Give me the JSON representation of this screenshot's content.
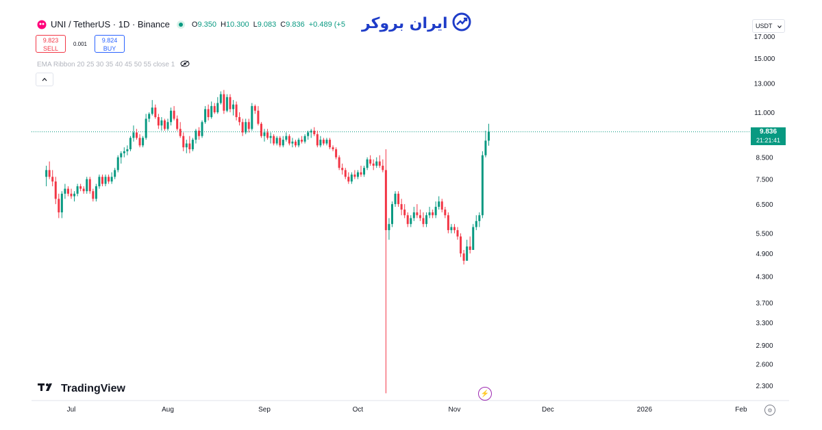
{
  "header": {
    "symbol_title": "UNI / TetherUS · 1D · Binance",
    "ohlc": [
      {
        "k": "O",
        "v": "9.350"
      },
      {
        "k": "H",
        "v": "10.300"
      },
      {
        "k": "L",
        "v": "9.083"
      },
      {
        "k": "C",
        "v": "9.836"
      },
      {
        "k": "",
        "v": "+0.489 (+5"
      }
    ]
  },
  "trade": {
    "sell_price": "9.823",
    "sell_label": "SELL",
    "spread": "0.001",
    "buy_price": "9.824",
    "buy_label": "BUY"
  },
  "indicator": {
    "label": "EMA Ribbon 20 25 30 35 40 45 50 55 close 1"
  },
  "currency": {
    "label": "USDT"
  },
  "price_tag": {
    "price": "9.836",
    "countdown": "21:21:41"
  },
  "logo": {
    "text": "TradingView"
  },
  "brand": {
    "text": "ایران بروکر"
  },
  "colors": {
    "up": "#089981",
    "down": "#f23645",
    "axis_text": "#131722",
    "brand": "#1e3cc8"
  },
  "chart_data": {
    "type": "candlestick",
    "symbol": "UNI/USDT",
    "interval": "1D",
    "x_ticks": [
      "Jul",
      "Aug",
      "Sep",
      "Oct",
      "Nov",
      "Dec",
      "2026",
      "Feb"
    ],
    "y_ticks": [
      17.0,
      15.0,
      13.0,
      11.0,
      8.5,
      7.5,
      6.5,
      5.5,
      4.9,
      4.3,
      3.7,
      3.3,
      2.9,
      2.6,
      2.3
    ],
    "y_tick_labels": [
      "17.000",
      "15.000",
      "13.000",
      "11.000",
      "8.500",
      "7.500",
      "6.500",
      "5.500",
      "4.900",
      "4.300",
      "3.700",
      "3.300",
      "2.900",
      "2.600",
      "2.300"
    ],
    "y_scale": "log",
    "last_price": 9.836,
    "candles": [
      {
        "d": "2025-06-23",
        "o": 7.6,
        "h": 8.1,
        "l": 7.2,
        "c": 7.9
      },
      {
        "d": "2025-06-24",
        "o": 7.9,
        "h": 8.3,
        "l": 7.5,
        "c": 7.6
      },
      {
        "d": "2025-06-25",
        "o": 7.6,
        "h": 7.9,
        "l": 7.2,
        "c": 7.4
      },
      {
        "d": "2025-06-26",
        "o": 7.4,
        "h": 7.6,
        "l": 6.5,
        "c": 6.7
      },
      {
        "d": "2025-06-27",
        "o": 6.7,
        "h": 6.9,
        "l": 6.0,
        "c": 6.2
      },
      {
        "d": "2025-06-28",
        "o": 6.2,
        "h": 7.0,
        "l": 6.0,
        "c": 6.9
      },
      {
        "d": "2025-06-29",
        "o": 6.9,
        "h": 7.3,
        "l": 6.7,
        "c": 7.1
      },
      {
        "d": "2025-06-30",
        "o": 7.1,
        "h": 7.2,
        "l": 6.8,
        "c": 6.9
      },
      {
        "d": "2025-07-01",
        "o": 6.9,
        "h": 7.1,
        "l": 6.7,
        "c": 6.8
      },
      {
        "d": "2025-07-02",
        "o": 6.8,
        "h": 7.0,
        "l": 6.6,
        "c": 6.9
      },
      {
        "d": "2025-07-03",
        "o": 6.9,
        "h": 7.3,
        "l": 6.8,
        "c": 7.2
      },
      {
        "d": "2025-07-04",
        "o": 7.2,
        "h": 7.3,
        "l": 7.0,
        "c": 7.1
      },
      {
        "d": "2025-07-05",
        "o": 7.1,
        "h": 7.2,
        "l": 6.9,
        "c": 7.0
      },
      {
        "d": "2025-07-06",
        "o": 7.0,
        "h": 7.6,
        "l": 6.9,
        "c": 7.5
      },
      {
        "d": "2025-07-07",
        "o": 7.5,
        "h": 7.6,
        "l": 6.9,
        "c": 7.0
      },
      {
        "d": "2025-07-08",
        "o": 7.0,
        "h": 7.1,
        "l": 6.6,
        "c": 6.7
      },
      {
        "d": "2025-07-09",
        "o": 6.7,
        "h": 7.3,
        "l": 6.6,
        "c": 7.2
      },
      {
        "d": "2025-07-10",
        "o": 7.2,
        "h": 7.7,
        "l": 7.1,
        "c": 7.6
      },
      {
        "d": "2025-07-11",
        "o": 7.6,
        "h": 7.7,
        "l": 7.2,
        "c": 7.3
      },
      {
        "d": "2025-07-12",
        "o": 7.3,
        "h": 7.7,
        "l": 7.2,
        "c": 7.6
      },
      {
        "d": "2025-07-13",
        "o": 7.6,
        "h": 7.7,
        "l": 7.3,
        "c": 7.4
      },
      {
        "d": "2025-07-14",
        "o": 7.4,
        "h": 7.8,
        "l": 7.3,
        "c": 7.6
      },
      {
        "d": "2025-07-15",
        "o": 7.6,
        "h": 8.0,
        "l": 7.5,
        "c": 7.9
      },
      {
        "d": "2025-07-16",
        "o": 7.9,
        "h": 8.6,
        "l": 7.8,
        "c": 8.5
      },
      {
        "d": "2025-07-17",
        "o": 8.5,
        "h": 8.8,
        "l": 8.2,
        "c": 8.7
      },
      {
        "d": "2025-07-18",
        "o": 8.7,
        "h": 9.0,
        "l": 8.5,
        "c": 8.8
      },
      {
        "d": "2025-07-19",
        "o": 8.8,
        "h": 9.1,
        "l": 8.6,
        "c": 8.9
      },
      {
        "d": "2025-07-20",
        "o": 8.9,
        "h": 9.6,
        "l": 8.8,
        "c": 9.5
      },
      {
        "d": "2025-07-21",
        "o": 9.5,
        "h": 10.2,
        "l": 9.3,
        "c": 9.8
      },
      {
        "d": "2025-07-22",
        "o": 9.8,
        "h": 10.0,
        "l": 9.4,
        "c": 9.5
      },
      {
        "d": "2025-07-23",
        "o": 9.5,
        "h": 9.7,
        "l": 9.0,
        "c": 9.1
      },
      {
        "d": "2025-07-24",
        "o": 9.1,
        "h": 9.6,
        "l": 9.0,
        "c": 9.5
      },
      {
        "d": "2025-07-25",
        "o": 9.5,
        "h": 10.9,
        "l": 9.4,
        "c": 10.6
      },
      {
        "d": "2025-07-26",
        "o": 10.6,
        "h": 11.0,
        "l": 10.4,
        "c": 10.9
      },
      {
        "d": "2025-07-27",
        "o": 10.9,
        "h": 11.8,
        "l": 10.8,
        "c": 11.3
      },
      {
        "d": "2025-07-28",
        "o": 11.3,
        "h": 11.5,
        "l": 10.6,
        "c": 10.7
      },
      {
        "d": "2025-07-29",
        "o": 10.7,
        "h": 10.9,
        "l": 10.0,
        "c": 10.2
      },
      {
        "d": "2025-07-30",
        "o": 10.2,
        "h": 10.7,
        "l": 9.9,
        "c": 10.5
      },
      {
        "d": "2025-07-31",
        "o": 10.5,
        "h": 10.6,
        "l": 9.9,
        "c": 10.0
      },
      {
        "d": "2025-08-01",
        "o": 10.0,
        "h": 10.6,
        "l": 9.9,
        "c": 10.4
      },
      {
        "d": "2025-08-02",
        "o": 10.4,
        "h": 11.3,
        "l": 10.2,
        "c": 11.1
      },
      {
        "d": "2025-08-03",
        "o": 11.1,
        "h": 11.4,
        "l": 10.5,
        "c": 10.6
      },
      {
        "d": "2025-08-04",
        "o": 10.6,
        "h": 10.8,
        "l": 9.9,
        "c": 10.0
      },
      {
        "d": "2025-08-05",
        "o": 10.0,
        "h": 10.4,
        "l": 9.5,
        "c": 9.6
      },
      {
        "d": "2025-08-06",
        "o": 9.6,
        "h": 9.8,
        "l": 8.8,
        "c": 9.0
      },
      {
        "d": "2025-08-07",
        "o": 9.0,
        "h": 9.4,
        "l": 8.7,
        "c": 9.2
      },
      {
        "d": "2025-08-08",
        "o": 9.2,
        "h": 9.6,
        "l": 8.7,
        "c": 8.9
      },
      {
        "d": "2025-08-09",
        "o": 8.9,
        "h": 9.5,
        "l": 8.8,
        "c": 9.4
      },
      {
        "d": "2025-08-10",
        "o": 9.4,
        "h": 10.0,
        "l": 9.2,
        "c": 9.9
      },
      {
        "d": "2025-08-11",
        "o": 9.9,
        "h": 10.1,
        "l": 9.4,
        "c": 9.6
      },
      {
        "d": "2025-08-12",
        "o": 9.6,
        "h": 10.5,
        "l": 9.5,
        "c": 10.4
      },
      {
        "d": "2025-08-13",
        "o": 10.4,
        "h": 11.4,
        "l": 10.3,
        "c": 11.2
      },
      {
        "d": "2025-08-14",
        "o": 11.2,
        "h": 11.5,
        "l": 10.5,
        "c": 10.7
      },
      {
        "d": "2025-08-15",
        "o": 10.7,
        "h": 11.7,
        "l": 10.6,
        "c": 11.4
      },
      {
        "d": "2025-08-16",
        "o": 11.4,
        "h": 11.6,
        "l": 10.9,
        "c": 11.0
      },
      {
        "d": "2025-08-17",
        "o": 11.0,
        "h": 12.0,
        "l": 10.9,
        "c": 11.6
      },
      {
        "d": "2025-08-18",
        "o": 11.6,
        "h": 12.4,
        "l": 11.5,
        "c": 12.2
      },
      {
        "d": "2025-08-19",
        "o": 12.2,
        "h": 12.5,
        "l": 10.9,
        "c": 11.1
      },
      {
        "d": "2025-08-20",
        "o": 11.1,
        "h": 12.2,
        "l": 11.0,
        "c": 12.0
      },
      {
        "d": "2025-08-21",
        "o": 12.0,
        "h": 12.2,
        "l": 11.0,
        "c": 11.2
      },
      {
        "d": "2025-08-22",
        "o": 11.2,
        "h": 11.8,
        "l": 10.8,
        "c": 11.5
      },
      {
        "d": "2025-08-23",
        "o": 11.5,
        "h": 11.7,
        "l": 10.5,
        "c": 10.7
      },
      {
        "d": "2025-08-24",
        "o": 10.7,
        "h": 11.0,
        "l": 10.2,
        "c": 10.4
      },
      {
        "d": "2025-08-25",
        "o": 10.4,
        "h": 10.6,
        "l": 9.6,
        "c": 9.8
      },
      {
        "d": "2025-08-26",
        "o": 9.8,
        "h": 10.6,
        "l": 9.7,
        "c": 10.4
      },
      {
        "d": "2025-08-27",
        "o": 10.4,
        "h": 10.6,
        "l": 9.8,
        "c": 10.0
      },
      {
        "d": "2025-08-28",
        "o": 10.0,
        "h": 11.6,
        "l": 9.9,
        "c": 11.4
      },
      {
        "d": "2025-08-29",
        "o": 11.4,
        "h": 11.5,
        "l": 10.9,
        "c": 11.1
      },
      {
        "d": "2025-08-30",
        "o": 11.1,
        "h": 11.4,
        "l": 10.2,
        "c": 10.3
      },
      {
        "d": "2025-08-31",
        "o": 10.3,
        "h": 10.4,
        "l": 9.5,
        "c": 9.6
      },
      {
        "d": "2025-09-01",
        "o": 9.6,
        "h": 10.0,
        "l": 9.3,
        "c": 9.8
      },
      {
        "d": "2025-09-02",
        "o": 9.8,
        "h": 10.0,
        "l": 9.4,
        "c": 9.5
      },
      {
        "d": "2025-09-03",
        "o": 9.5,
        "h": 9.8,
        "l": 9.2,
        "c": 9.6
      },
      {
        "d": "2025-09-04",
        "o": 9.6,
        "h": 9.7,
        "l": 9.1,
        "c": 9.2
      },
      {
        "d": "2025-09-05",
        "o": 9.2,
        "h": 9.6,
        "l": 9.1,
        "c": 9.5
      },
      {
        "d": "2025-09-06",
        "o": 9.5,
        "h": 9.6,
        "l": 9.0,
        "c": 9.1
      },
      {
        "d": "2025-09-07",
        "o": 9.1,
        "h": 9.6,
        "l": 9.0,
        "c": 9.4
      },
      {
        "d": "2025-09-08",
        "o": 9.4,
        "h": 9.8,
        "l": 9.3,
        "c": 9.6
      },
      {
        "d": "2025-09-09",
        "o": 9.6,
        "h": 9.7,
        "l": 9.1,
        "c": 9.2
      },
      {
        "d": "2025-09-10",
        "o": 9.2,
        "h": 9.5,
        "l": 9.0,
        "c": 9.3
      },
      {
        "d": "2025-09-11",
        "o": 9.3,
        "h": 9.4,
        "l": 9.0,
        "c": 9.1
      },
      {
        "d": "2025-09-12",
        "o": 9.1,
        "h": 9.5,
        "l": 9.0,
        "c": 9.4
      },
      {
        "d": "2025-09-13",
        "o": 9.4,
        "h": 9.6,
        "l": 9.2,
        "c": 9.3
      },
      {
        "d": "2025-09-14",
        "o": 9.3,
        "h": 9.7,
        "l": 9.2,
        "c": 9.6
      },
      {
        "d": "2025-09-15",
        "o": 9.6,
        "h": 9.9,
        "l": 9.4,
        "c": 9.8
      },
      {
        "d": "2025-09-16",
        "o": 9.8,
        "h": 10.0,
        "l": 9.5,
        "c": 9.9
      },
      {
        "d": "2025-09-17",
        "o": 9.9,
        "h": 10.1,
        "l": 9.6,
        "c": 9.7
      },
      {
        "d": "2025-09-18",
        "o": 9.7,
        "h": 9.9,
        "l": 9.0,
        "c": 9.1
      },
      {
        "d": "2025-09-19",
        "o": 9.1,
        "h": 9.6,
        "l": 9.0,
        "c": 9.4
      },
      {
        "d": "2025-09-20",
        "o": 9.4,
        "h": 9.5,
        "l": 9.1,
        "c": 9.2
      },
      {
        "d": "2025-09-21",
        "o": 9.2,
        "h": 9.5,
        "l": 9.1,
        "c": 9.4
      },
      {
        "d": "2025-09-22",
        "o": 9.4,
        "h": 9.5,
        "l": 8.9,
        "c": 9.0
      },
      {
        "d": "2025-09-23",
        "o": 9.0,
        "h": 9.1,
        "l": 8.8,
        "c": 8.9
      },
      {
        "d": "2025-09-24",
        "o": 8.9,
        "h": 9.0,
        "l": 8.4,
        "c": 8.5
      },
      {
        "d": "2025-09-25",
        "o": 8.5,
        "h": 8.6,
        "l": 7.9,
        "c": 8.0
      },
      {
        "d": "2025-09-26",
        "o": 8.0,
        "h": 8.2,
        "l": 7.7,
        "c": 7.9
      },
      {
        "d": "2025-09-27",
        "o": 7.9,
        "h": 8.0,
        "l": 7.5,
        "c": 7.6
      },
      {
        "d": "2025-09-28",
        "o": 7.6,
        "h": 7.8,
        "l": 7.3,
        "c": 7.4
      },
      {
        "d": "2025-09-29",
        "o": 7.4,
        "h": 7.8,
        "l": 7.3,
        "c": 7.7
      },
      {
        "d": "2025-09-30",
        "o": 7.7,
        "h": 7.9,
        "l": 7.5,
        "c": 7.6
      },
      {
        "d": "2025-10-01",
        "o": 7.6,
        "h": 7.9,
        "l": 7.5,
        "c": 7.8
      },
      {
        "d": "2025-10-02",
        "o": 7.8,
        "h": 8.1,
        "l": 7.6,
        "c": 7.7
      },
      {
        "d": "2025-10-03",
        "o": 7.7,
        "h": 8.1,
        "l": 7.6,
        "c": 8.0
      },
      {
        "d": "2025-10-04",
        "o": 8.0,
        "h": 8.5,
        "l": 7.9,
        "c": 8.4
      },
      {
        "d": "2025-10-05",
        "o": 8.4,
        "h": 8.6,
        "l": 8.1,
        "c": 8.2
      },
      {
        "d": "2025-10-06",
        "o": 8.2,
        "h": 8.4,
        "l": 7.9,
        "c": 8.1
      },
      {
        "d": "2025-10-07",
        "o": 8.1,
        "h": 8.5,
        "l": 8.0,
        "c": 8.3
      },
      {
        "d": "2025-10-08",
        "o": 8.3,
        "h": 8.6,
        "l": 8.0,
        "c": 8.1
      },
      {
        "d": "2025-10-09",
        "o": 8.1,
        "h": 8.4,
        "l": 7.8,
        "c": 7.9
      },
      {
        "d": "2025-10-10",
        "o": 7.9,
        "h": 8.9,
        "l": 2.2,
        "c": 5.6
      },
      {
        "d": "2025-10-11",
        "o": 5.6,
        "h": 6.0,
        "l": 5.3,
        "c": 5.8
      },
      {
        "d": "2025-10-12",
        "o": 5.8,
        "h": 6.6,
        "l": 5.7,
        "c": 6.5
      },
      {
        "d": "2025-10-13",
        "o": 6.5,
        "h": 7.0,
        "l": 6.4,
        "c": 6.9
      },
      {
        "d": "2025-10-14",
        "o": 6.9,
        "h": 7.0,
        "l": 6.4,
        "c": 6.5
      },
      {
        "d": "2025-10-15",
        "o": 6.5,
        "h": 6.7,
        "l": 6.1,
        "c": 6.3
      },
      {
        "d": "2025-10-16",
        "o": 6.3,
        "h": 6.5,
        "l": 6.0,
        "c": 6.1
      },
      {
        "d": "2025-10-17",
        "o": 6.1,
        "h": 6.2,
        "l": 5.7,
        "c": 5.8
      },
      {
        "d": "2025-10-18",
        "o": 5.8,
        "h": 6.1,
        "l": 5.7,
        "c": 6.0
      },
      {
        "d": "2025-10-19",
        "o": 6.0,
        "h": 6.4,
        "l": 5.9,
        "c": 6.2
      },
      {
        "d": "2025-10-20",
        "o": 6.2,
        "h": 6.5,
        "l": 6.0,
        "c": 6.1
      },
      {
        "d": "2025-10-21",
        "o": 6.1,
        "h": 6.3,
        "l": 5.9,
        "c": 6.0
      },
      {
        "d": "2025-10-22",
        "o": 6.0,
        "h": 6.2,
        "l": 5.7,
        "c": 5.8
      },
      {
        "d": "2025-10-23",
        "o": 5.8,
        "h": 6.2,
        "l": 5.7,
        "c": 6.1
      },
      {
        "d": "2025-10-24",
        "o": 6.1,
        "h": 6.4,
        "l": 6.0,
        "c": 6.2
      },
      {
        "d": "2025-10-25",
        "o": 6.2,
        "h": 6.3,
        "l": 6.0,
        "c": 6.1
      },
      {
        "d": "2025-10-26",
        "o": 6.1,
        "h": 6.6,
        "l": 6.0,
        "c": 6.4
      },
      {
        "d": "2025-10-27",
        "o": 6.4,
        "h": 6.8,
        "l": 6.3,
        "c": 6.6
      },
      {
        "d": "2025-10-28",
        "o": 6.6,
        "h": 6.7,
        "l": 6.2,
        "c": 6.3
      },
      {
        "d": "2025-10-29",
        "o": 6.3,
        "h": 6.4,
        "l": 6.0,
        "c": 6.1
      },
      {
        "d": "2025-10-30",
        "o": 6.1,
        "h": 6.2,
        "l": 5.5,
        "c": 5.6
      },
      {
        "d": "2025-10-31",
        "o": 5.6,
        "h": 5.8,
        "l": 5.5,
        "c": 5.7
      },
      {
        "d": "2025-11-01",
        "o": 5.7,
        "h": 5.8,
        "l": 5.5,
        "c": 5.6
      },
      {
        "d": "2025-11-02",
        "o": 5.6,
        "h": 5.7,
        "l": 5.3,
        "c": 5.4
      },
      {
        "d": "2025-11-03",
        "o": 5.4,
        "h": 5.5,
        "l": 4.8,
        "c": 4.9
      },
      {
        "d": "2025-11-04",
        "o": 4.9,
        "h": 5.0,
        "l": 4.6,
        "c": 4.7
      },
      {
        "d": "2025-11-05",
        "o": 4.7,
        "h": 5.3,
        "l": 4.7,
        "c": 5.1
      },
      {
        "d": "2025-11-06",
        "o": 5.1,
        "h": 5.4,
        "l": 4.9,
        "c": 5.0
      },
      {
        "d": "2025-11-07",
        "o": 5.0,
        "h": 5.8,
        "l": 5.0,
        "c": 5.7
      },
      {
        "d": "2025-11-08",
        "o": 5.7,
        "h": 6.1,
        "l": 5.6,
        "c": 5.9
      },
      {
        "d": "2025-11-09",
        "o": 5.9,
        "h": 6.2,
        "l": 5.7,
        "c": 6.1
      },
      {
        "d": "2025-11-10",
        "o": 6.1,
        "h": 8.8,
        "l": 6.0,
        "c": 8.6
      },
      {
        "d": "2025-11-11",
        "o": 8.6,
        "h": 9.9,
        "l": 8.5,
        "c": 9.35
      },
      {
        "d": "2025-11-12",
        "o": 9.35,
        "h": 10.3,
        "l": 9.083,
        "c": 9.836
      }
    ]
  }
}
